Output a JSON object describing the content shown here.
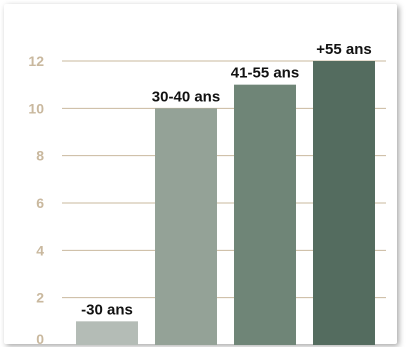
{
  "chart_data": {
    "type": "bar",
    "categories": [
      "-30 ans",
      "30-40 ans",
      "41-55 ans",
      "+55 ans"
    ],
    "values": [
      1,
      10,
      11,
      12
    ],
    "ylim": [
      0,
      12
    ],
    "yticks": [
      0,
      2,
      4,
      6,
      8,
      10,
      12
    ],
    "grid": true,
    "colors": {
      "bars": [
        "#b4bcb6",
        "#94a297",
        "#6f8577",
        "#546c5f"
      ],
      "grid": "#c9b89e",
      "tick_text": "#c9b89e",
      "label_text": "#111111"
    }
  }
}
